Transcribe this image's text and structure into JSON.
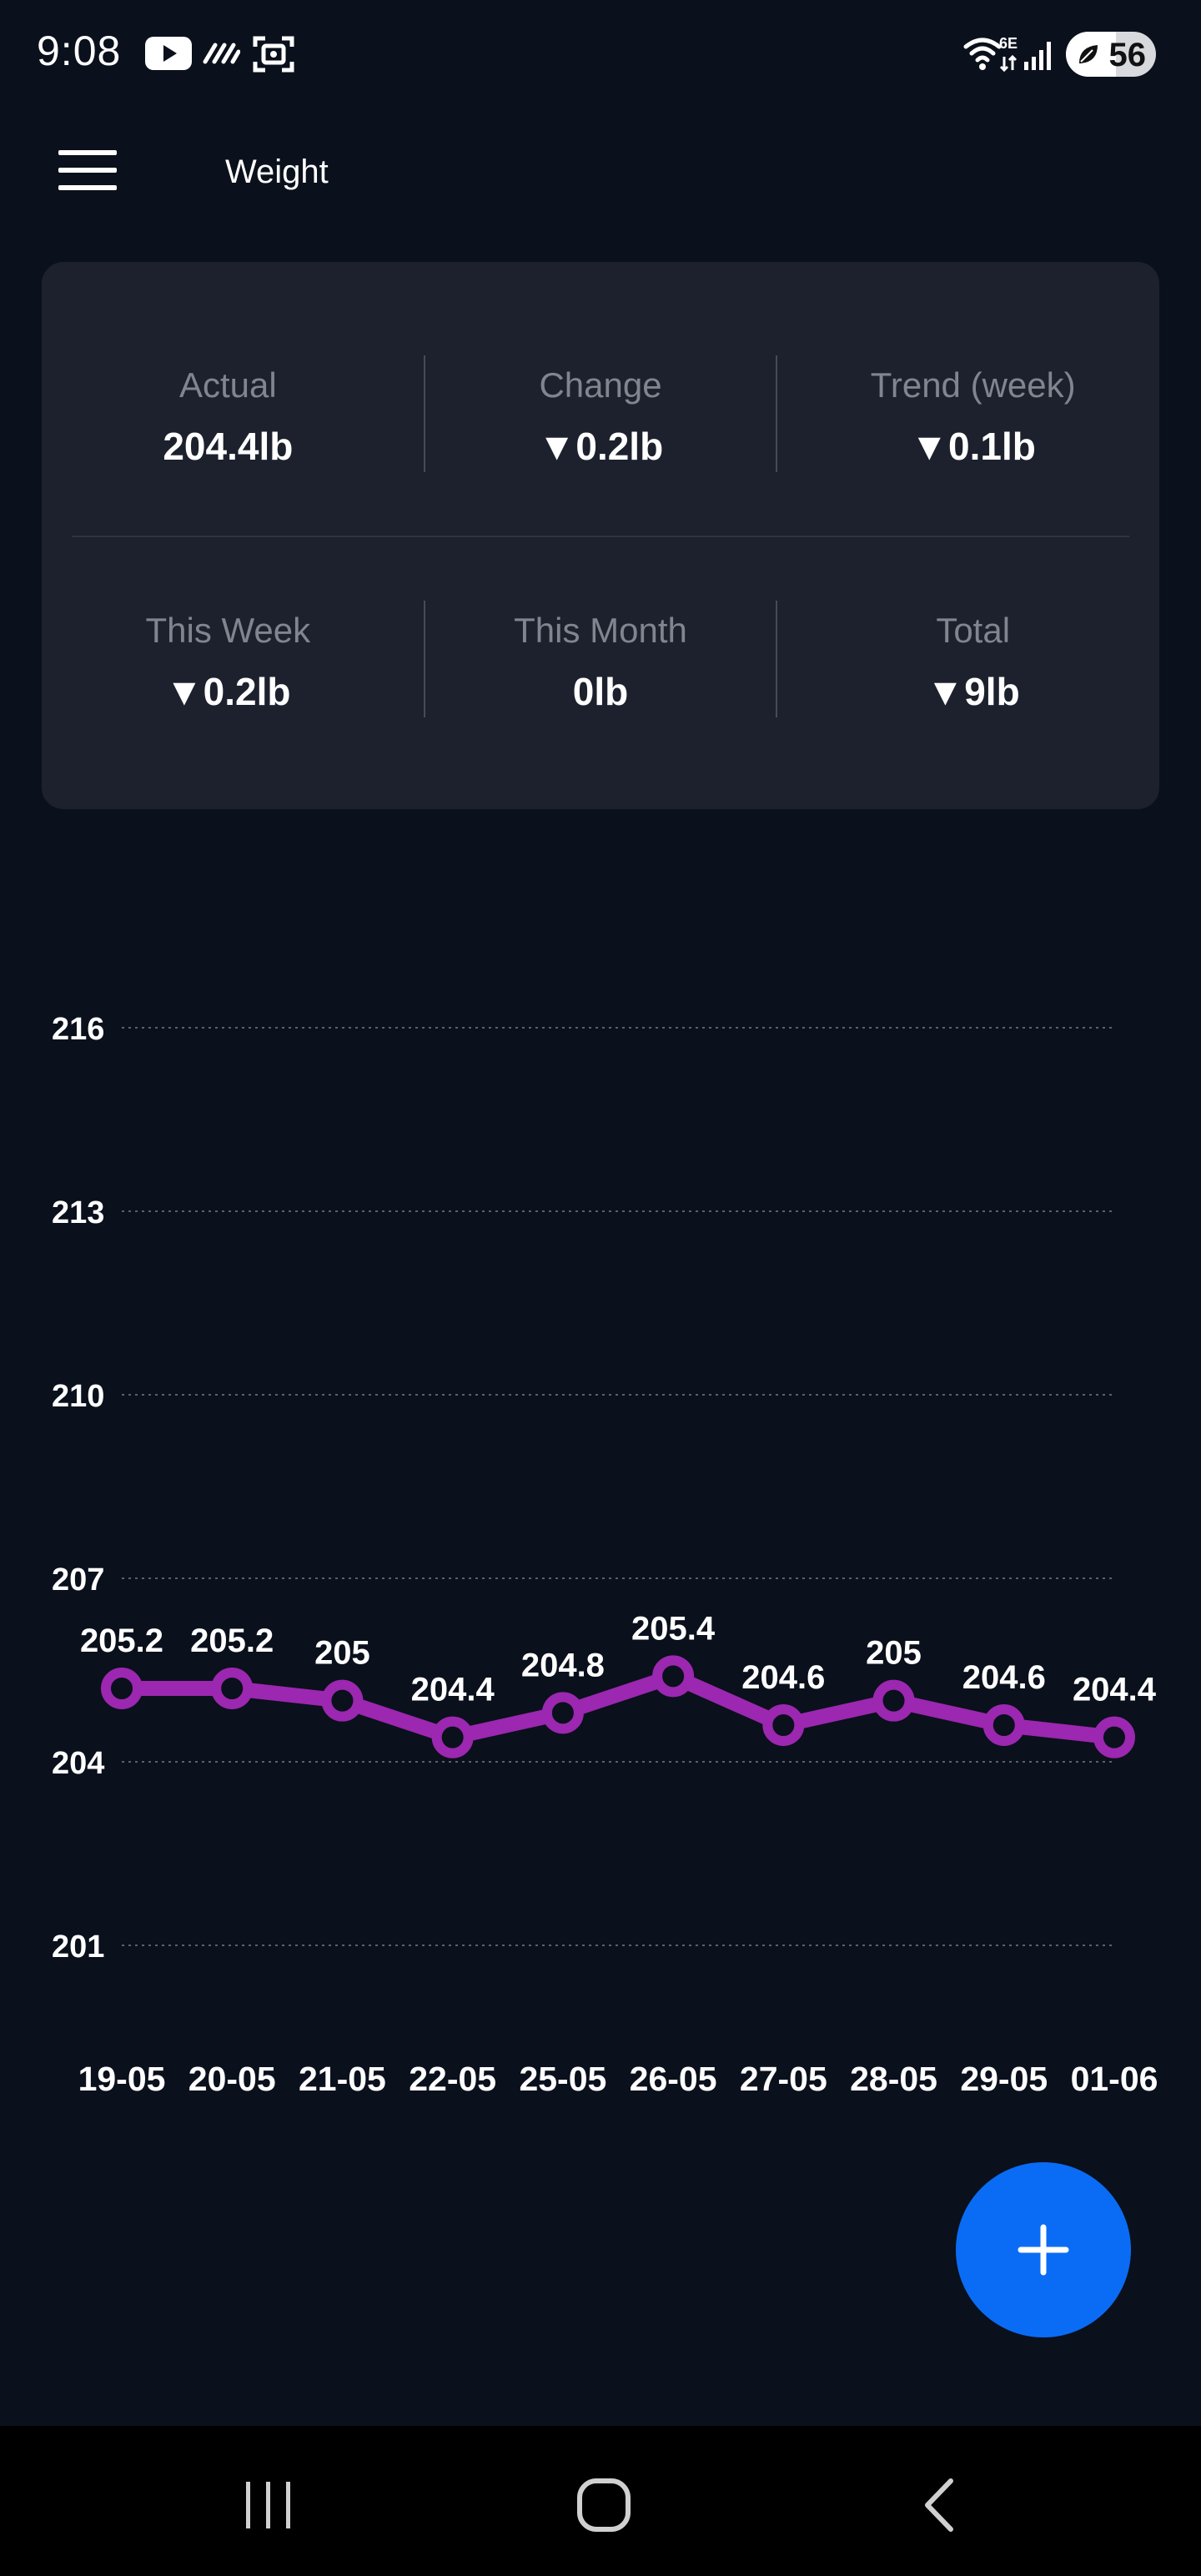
{
  "status_bar": {
    "time": "9:08",
    "battery": "56",
    "network_badge": "6E",
    "icons": [
      "youtube-icon",
      "signal-lines-icon",
      "screenshot-icon",
      "wifi-icon",
      "cell-signal-icon",
      "battery-icon",
      "leaf-icon"
    ]
  },
  "app_bar": {
    "title": "Weight",
    "menu_icon": "hamburger-menu-icon"
  },
  "stats": {
    "row1": [
      {
        "label": "Actual",
        "value": "204.4lb"
      },
      {
        "label": "Change",
        "value": "▼0.2lb"
      },
      {
        "label": "Trend (week)",
        "value": "▼0.1lb"
      }
    ],
    "row2": [
      {
        "label": "This Week",
        "value": "▼0.2lb"
      },
      {
        "label": "This Month",
        "value": "0lb"
      },
      {
        "label": "Total",
        "value": "▼9lb"
      }
    ]
  },
  "chart_data": {
    "type": "line",
    "x": [
      "19-05",
      "20-05",
      "21-05",
      "22-05",
      "25-05",
      "26-05",
      "27-05",
      "28-05",
      "29-05",
      "01-06"
    ],
    "series": [
      {
        "values": [
          205.2,
          205.2,
          205,
          204.4,
          204.8,
          205.4,
          204.6,
          205,
          204.6,
          204.4
        ],
        "labels": [
          "205.2",
          "205.2",
          "205",
          "204.4",
          "204.8",
          "205.4",
          "204.6",
          "205",
          "204.6",
          "204.4"
        ],
        "color": "#9c27b0"
      }
    ],
    "yticks": [
      216,
      213,
      210,
      207,
      204,
      201
    ],
    "ylim": [
      201,
      216
    ],
    "grid": true,
    "title": "",
    "xlabel": "",
    "ylabel": ""
  },
  "fab": {
    "icon": "plus-icon"
  },
  "nav_bar": {
    "icons": [
      "recent-apps-icon",
      "home-icon",
      "back-icon"
    ]
  },
  "colors": {
    "background": "#0a101c",
    "card": "#1d212d",
    "accent": "#0a6cf5",
    "series": "#9c27b0"
  }
}
